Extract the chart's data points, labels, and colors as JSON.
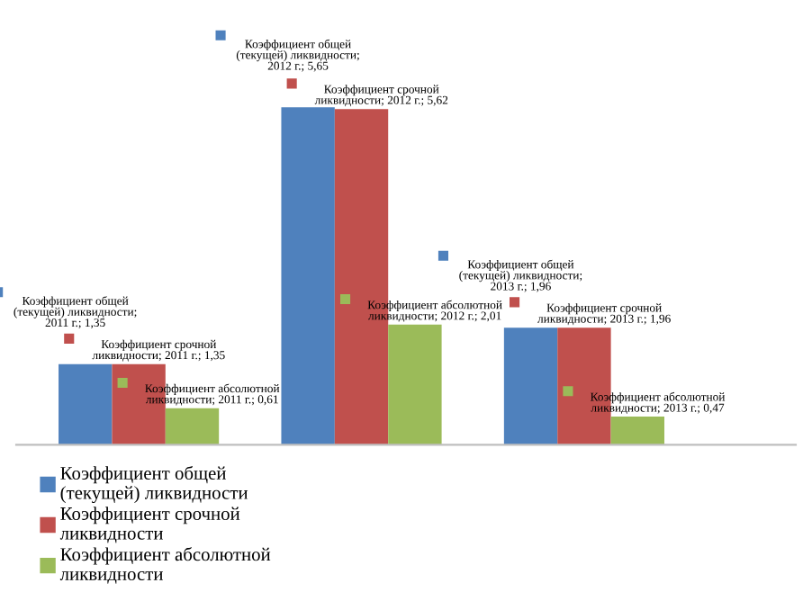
{
  "chart_data": {
    "type": "bar",
    "categories": [
      null,
      null,
      null
    ],
    "series": [
      {
        "name": "Коэффициент общей\n(текущей) ликвидности",
        "color": "#4f81bd",
        "values": [
          1.35,
          5.65,
          1.96
        ],
        "value_labels": [
          "Коэффициент общей\n(текущей) ликвидности;\n2011 г.; 1,35",
          "Коэффициент общей\n(текущей) ликвидности;\n2012 г.; 5,65",
          "Коэффициент общей\n(текущей) ликвидности;\n2013 г.; 1,96"
        ]
      },
      {
        "name": "Коэффициент срочной\nликвидности",
        "color": "#c0504d",
        "values": [
          1.35,
          5.62,
          1.96
        ],
        "value_labels": [
          "Коэффициент срочной\nликвидности; 2011 г.; 1,35",
          "Коэффициент срочной\nликвидности; 2012 г.; 5,62",
          "Коэффициент срочной\nликвидности; 2013 г.; 1,96"
        ]
      },
      {
        "name": "Коэффициент абсолютной\nликвидности",
        "color": "#9bbb59",
        "values": [
          0.61,
          2.01,
          0.47
        ],
        "value_labels": [
          "Коэффициент абсолютной\nликвидности; 2011 г.; 0,61",
          "Коэффициент абсолютной\nликвидности; 2012 г.; 2,01",
          "Коэффициент абсолютной\nликвидности; 2013 г.; 0,47"
        ]
      }
    ],
    "legend": "bottom left"
  }
}
